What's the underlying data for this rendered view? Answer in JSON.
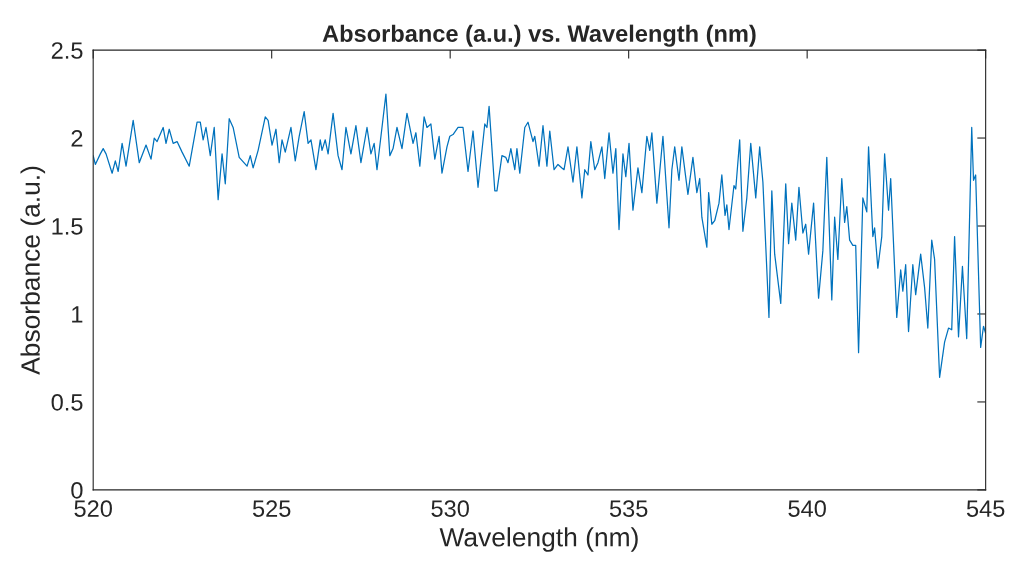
{
  "chart_data": {
    "type": "line",
    "title": "Absorbance (a.u.) vs. Wavelength (nm)",
    "xlabel": "Wavelength (nm)",
    "ylabel": "Absorbance (a.u.)",
    "xlim": [
      520,
      545
    ],
    "xticks": [
      520,
      525,
      530,
      535,
      540,
      545
    ],
    "ylim": [
      0,
      2.5
    ],
    "yticks": [
      0,
      0.5,
      1,
      1.5,
      2,
      2.5
    ],
    "grid": false,
    "series": [
      {
        "color": "#0072bd",
        "x": [
          520,
          520.06,
          520.2,
          520.28,
          520.36,
          520.53,
          520.62,
          520.7,
          520.81,
          520.92,
          521.12,
          521.29,
          521.48,
          521.62,
          521.71,
          521.79,
          521.96,
          522.04,
          522.13,
          522.24,
          522.35,
          522.49,
          522.69,
          522.91,
          523.0,
          523.08,
          523.16,
          523.28,
          523.39,
          523.5,
          523.61,
          523.7,
          523.81,
          523.92,
          524.09,
          524.31,
          524.4,
          524.48,
          524.62,
          524.82,
          524.9,
          525.01,
          525.12,
          525.21,
          525.29,
          525.38,
          525.54,
          525.66,
          525.77,
          525.91,
          526.02,
          526.1,
          526.24,
          526.36,
          526.41,
          526.5,
          526.58,
          526.72,
          526.86,
          526.97,
          527.08,
          527.22,
          527.36,
          527.5,
          527.67,
          527.78,
          527.87,
          527.95,
          528.2,
          528.31,
          528.4,
          528.51,
          528.65,
          528.79,
          528.96,
          529.04,
          529.15,
          529.27,
          529.35,
          529.46,
          529.57,
          529.69,
          529.77,
          529.91,
          529.99,
          530.08,
          530.22,
          530.36,
          530.5,
          530.64,
          530.78,
          530.97,
          531.03,
          531.09,
          531.25,
          531.31,
          531.45,
          531.56,
          531.62,
          531.7,
          531.81,
          531.87,
          531.95,
          532.09,
          532.18,
          532.32,
          532.37,
          532.49,
          532.6,
          532.71,
          532.79,
          532.91,
          533.02,
          533.13,
          533.19,
          533.3,
          533.44,
          533.55,
          533.69,
          533.77,
          533.86,
          533.94,
          534.05,
          534.14,
          534.25,
          534.33,
          534.45,
          534.56,
          534.64,
          534.73,
          534.84,
          534.92,
          535.01,
          535.12,
          535.26,
          535.37,
          535.51,
          535.59,
          535.65,
          535.79,
          535.96,
          536.13,
          536.21,
          536.29,
          536.41,
          536.49,
          536.66,
          536.8,
          536.91,
          536.99,
          537.05,
          537.19,
          537.24,
          537.33,
          537.41,
          537.53,
          537.61,
          537.7,
          537.75,
          537.81,
          537.95,
          538.0,
          538.11,
          538.2,
          538.31,
          538.42,
          538.56,
          538.67,
          538.76,
          538.93,
          539.01,
          539.09,
          539.26,
          539.4,
          539.48,
          539.57,
          539.68,
          539.77,
          539.88,
          539.96,
          540.04,
          540.18,
          540.32,
          540.44,
          540.55,
          540.69,
          540.77,
          540.86,
          540.97,
          541.05,
          541.11,
          541.19,
          541.28,
          541.36,
          541.44,
          541.56,
          541.67,
          541.72,
          541.84,
          541.89,
          541.98,
          542.09,
          542.17,
          542.28,
          542.34,
          542.51,
          542.62,
          542.68,
          542.76,
          542.84,
          542.96,
          543.04,
          543.18,
          543.29,
          543.38,
          543.49,
          543.57,
          543.71,
          543.85,
          543.96,
          544.05,
          544.13,
          544.24,
          544.35,
          544.47,
          544.61,
          544.66,
          544.72,
          544.86,
          544.94,
          545.0
        ],
        "values": [
          1.9,
          1.85,
          1.91,
          1.94,
          1.91,
          1.8,
          1.87,
          1.81,
          1.97,
          1.84,
          2.1,
          1.86,
          1.96,
          1.88,
          2.0,
          1.98,
          2.06,
          1.97,
          2.05,
          1.97,
          1.98,
          1.92,
          1.84,
          2.09,
          2.09,
          1.99,
          2.06,
          1.9,
          2.06,
          1.65,
          1.91,
          1.74,
          2.11,
          2.06,
          1.89,
          1.84,
          1.9,
          1.83,
          1.93,
          2.12,
          2.1,
          1.96,
          2.05,
          1.86,
          1.99,
          1.92,
          2.06,
          1.87,
          2.01,
          2.15,
          1.97,
          1.99,
          1.82,
          1.99,
          1.93,
          1.99,
          1.91,
          2.14,
          1.9,
          1.82,
          2.06,
          1.91,
          2.07,
          1.86,
          2.06,
          1.91,
          1.97,
          1.82,
          2.25,
          1.9,
          1.94,
          2.06,
          1.94,
          2.14,
          1.97,
          2.03,
          1.84,
          2.12,
          2.06,
          2.08,
          1.88,
          2.01,
          1.8,
          1.95,
          2.01,
          2.02,
          2.06,
          2.06,
          1.81,
          2.04,
          1.72,
          2.08,
          2.06,
          2.18,
          1.7,
          1.7,
          1.9,
          1.89,
          1.86,
          1.94,
          1.82,
          1.94,
          1.8,
          2.06,
          2.09,
          1.98,
          2.01,
          1.84,
          2.07,
          1.84,
          2.04,
          1.82,
          1.85,
          1.83,
          1.82,
          1.95,
          1.75,
          1.95,
          1.66,
          1.82,
          1.79,
          1.98,
          1.82,
          1.86,
          1.95,
          1.77,
          2.03,
          1.8,
          1.94,
          1.48,
          1.91,
          1.78,
          1.97,
          1.59,
          1.83,
          1.69,
          2.01,
          1.93,
          2.03,
          1.63,
          2.01,
          1.49,
          1.82,
          1.95,
          1.76,
          1.95,
          1.68,
          1.89,
          1.69,
          1.77,
          1.55,
          1.38,
          1.69,
          1.51,
          1.53,
          1.63,
          1.79,
          1.56,
          1.62,
          1.48,
          1.73,
          1.71,
          1.99,
          1.47,
          1.66,
          1.97,
          1.66,
          1.95,
          1.75,
          0.98,
          1.7,
          1.34,
          1.06,
          1.74,
          1.4,
          1.63,
          1.42,
          1.72,
          1.46,
          1.51,
          1.34,
          1.63,
          1.09,
          1.36,
          1.89,
          1.08,
          1.55,
          1.31,
          1.77,
          1.52,
          1.61,
          1.42,
          1.39,
          1.39,
          0.78,
          1.66,
          1.58,
          1.95,
          1.44,
          1.49,
          1.26,
          1.44,
          1.91,
          1.59,
          1.77,
          0.98,
          1.25,
          1.13,
          1.28,
          0.9,
          1.28,
          1.11,
          1.34,
          1.15,
          0.92,
          1.42,
          1.31,
          0.64,
          0.84,
          0.92,
          0.91,
          1.44,
          0.87,
          1.27,
          0.86,
          2.06,
          1.76,
          1.79,
          0.81,
          0.93,
          0.89
        ]
      }
    ]
  }
}
